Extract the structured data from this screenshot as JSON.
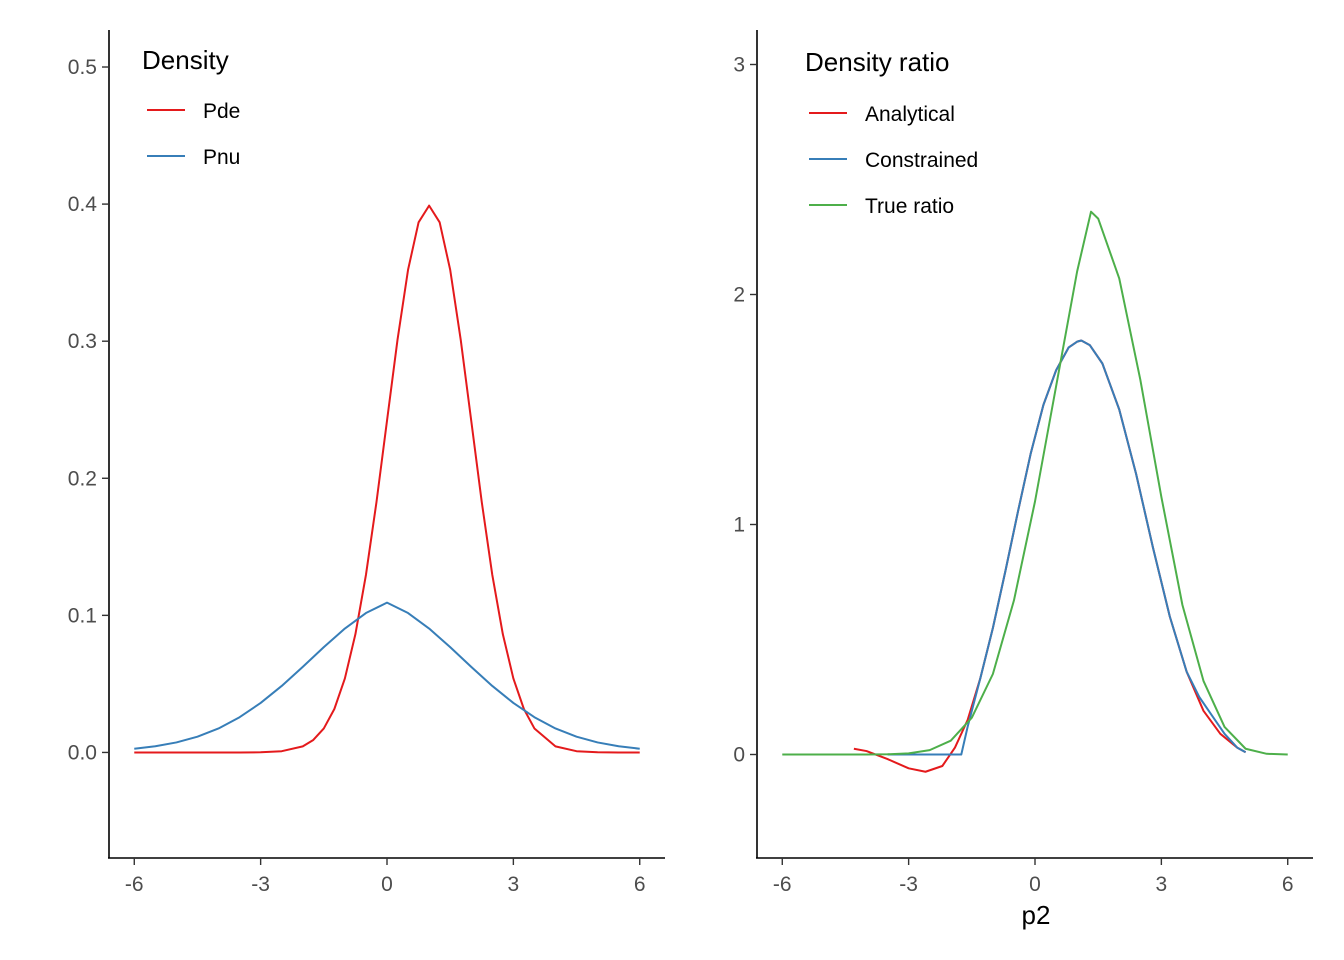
{
  "chart_data": [
    {
      "type": "line",
      "title": "",
      "xlabel": "",
      "ylabel": "",
      "xlim": [
        -6.6,
        6.6
      ],
      "ylim": [
        -0.077,
        0.527
      ],
      "x_ticks": [
        -6,
        -3,
        0,
        3,
        6
      ],
      "x_tick_labels": [
        "-6",
        "-3",
        "0",
        "3",
        "6"
      ],
      "y_ticks": [
        0.0,
        0.1,
        0.2,
        0.3,
        0.4,
        0.5
      ],
      "y_tick_labels": [
        "0.0",
        "0.1",
        "0.2",
        "0.3",
        "0.4",
        "0.5"
      ],
      "grid": false,
      "legend": {
        "title": "Density",
        "position": "top-left"
      },
      "series": [
        {
          "name": "Pde",
          "color": "#E41A1C",
          "x": [
            -6,
            -5.5,
            -5,
            -4.5,
            -4,
            -3.5,
            -3,
            -2.5,
            -2,
            -1.75,
            -1.5,
            -1.25,
            -1,
            -0.75,
            -0.5,
            -0.25,
            0,
            0.25,
            0.5,
            0.75,
            1,
            1.25,
            1.5,
            1.75,
            2,
            2.25,
            2.5,
            2.75,
            3,
            3.25,
            3.5,
            4,
            4.5,
            5,
            5.5,
            6
          ],
          "y": [
            0.0,
            0.0,
            0.0,
            0.0,
            0.0,
            0.0,
            0.0001,
            0.0009,
            0.0044,
            0.0091,
            0.0175,
            0.0317,
            0.054,
            0.0863,
            0.1295,
            0.1826,
            0.242,
            0.3011,
            0.3521,
            0.3867,
            0.3989,
            0.3867,
            0.3521,
            0.3011,
            0.242,
            0.1826,
            0.1295,
            0.0863,
            0.054,
            0.0317,
            0.0175,
            0.0044,
            0.0009,
            0.0001,
            0.0,
            0.0
          ]
        },
        {
          "name": "Pnu",
          "color": "#377EB8",
          "x": [
            -6,
            -5.5,
            -5,
            -4.5,
            -4,
            -3.5,
            -3,
            -2.5,
            -2,
            -1.5,
            -1,
            -0.5,
            0,
            0.5,
            1,
            1.5,
            2,
            2.5,
            3,
            3.5,
            4,
            4.5,
            5,
            5.5,
            6
          ],
          "y": [
            0.0027,
            0.0045,
            0.0073,
            0.0115,
            0.0175,
            0.0257,
            0.0361,
            0.0485,
            0.0624,
            0.0768,
            0.0904,
            0.1017,
            0.1093,
            0.1017,
            0.0904,
            0.0768,
            0.0624,
            0.0485,
            0.0361,
            0.0257,
            0.0175,
            0.0115,
            0.0073,
            0.0045,
            0.0027
          ]
        }
      ]
    },
    {
      "type": "line",
      "title": "",
      "xlabel": "p2",
      "ylabel": "",
      "xlim": [
        -6.6,
        6.6
      ],
      "ylim": [
        -0.45,
        3.15
      ],
      "x_ticks": [
        -6,
        -3,
        0,
        3,
        6
      ],
      "x_tick_labels": [
        "-6",
        "-3",
        "0",
        "3",
        "6"
      ],
      "y_ticks": [
        0,
        1,
        2,
        3
      ],
      "y_tick_labels": [
        "0",
        "1",
        "2",
        "3"
      ],
      "grid": false,
      "legend": {
        "title": "Density ratio",
        "position": "top-left"
      },
      "series": [
        {
          "name": "Analytical",
          "color": "#E41A1C",
          "x": [
            -4.3,
            -4.0,
            -3.5,
            -3.0,
            -2.6,
            -2.2,
            -1.9,
            -1.6,
            -1.3,
            -1.0,
            -0.7,
            -0.4,
            -0.1,
            0.2,
            0.5,
            0.8,
            1.0,
            1.1,
            1.3,
            1.6,
            2.0,
            2.4,
            2.8,
            3.2,
            3.6,
            4.0,
            4.4,
            4.8,
            5.0
          ],
          "y": [
            0.025,
            0.015,
            -0.02,
            -0.06,
            -0.075,
            -0.05,
            0.03,
            0.15,
            0.33,
            0.55,
            0.8,
            1.06,
            1.31,
            1.52,
            1.67,
            1.77,
            1.795,
            1.8,
            1.78,
            1.7,
            1.5,
            1.22,
            0.9,
            0.6,
            0.36,
            0.19,
            0.09,
            0.03,
            0.01
          ]
        },
        {
          "name": "Constrained",
          "color": "#377EB8",
          "x": [
            -3.5,
            -3.0,
            -2.5,
            -2.0,
            -1.75,
            -1.6,
            -1.3,
            -1.0,
            -0.7,
            -0.4,
            -0.1,
            0.2,
            0.5,
            0.8,
            1.0,
            1.1,
            1.3,
            1.6,
            2.0,
            2.4,
            2.8,
            3.2,
            3.6,
            3.9,
            4.2,
            4.5,
            4.8,
            5.0
          ],
          "y": [
            0.0,
            0.0,
            0.0,
            0.0,
            0.0,
            0.12,
            0.33,
            0.55,
            0.8,
            1.06,
            1.31,
            1.52,
            1.67,
            1.77,
            1.795,
            1.8,
            1.78,
            1.7,
            1.5,
            1.22,
            0.9,
            0.6,
            0.36,
            0.25,
            0.17,
            0.09,
            0.03,
            0.01
          ]
        },
        {
          "name": "True ratio",
          "color": "#4DAF4A",
          "x": [
            -6.0,
            -5.0,
            -4.0,
            -3.5,
            -3.0,
            -2.5,
            -2.0,
            -1.5,
            -1.0,
            -0.5,
            0.0,
            0.5,
            1.0,
            1.33,
            1.5,
            2.0,
            2.5,
            3.0,
            3.5,
            4.0,
            4.5,
            5.0,
            5.5,
            6.0
          ],
          "y": [
            0.0,
            0.0,
            0.0,
            0.001,
            0.005,
            0.019,
            0.06,
            0.16,
            0.35,
            0.67,
            1.1,
            1.6,
            2.1,
            2.36,
            2.33,
            2.07,
            1.63,
            1.12,
            0.65,
            0.32,
            0.12,
            0.025,
            0.003,
            0.0
          ]
        }
      ]
    }
  ]
}
